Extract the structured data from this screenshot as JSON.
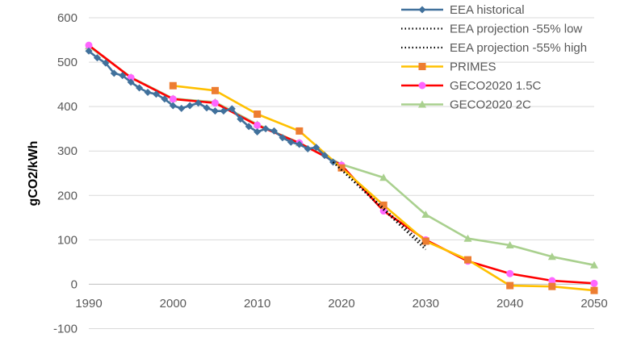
{
  "chart_data": {
    "type": "line",
    "xlabel": "",
    "ylabel": "gCO2/kWh",
    "xlim": [
      1990,
      2050
    ],
    "ylim": [
      -100,
      600
    ],
    "xticks": [
      1990,
      2000,
      2010,
      2020,
      2030,
      2040,
      2050
    ],
    "yticks": [
      -100,
      0,
      100,
      200,
      300,
      400,
      500,
      600
    ],
    "grid": "horizontal",
    "legend_position": "top-right",
    "series": [
      {
        "name": "EEA historical",
        "color": "#41719c",
        "line": "solid",
        "marker": "diamond",
        "x": [
          1990,
          1991,
          1992,
          1993,
          1994,
          1995,
          1996,
          1997,
          1998,
          1999,
          2000,
          2001,
          2002,
          2003,
          2004,
          2005,
          2006,
          2007,
          2008,
          2009,
          2010,
          2011,
          2012,
          2013,
          2014,
          2015,
          2016,
          2017,
          2018,
          2019
        ],
        "y": [
          525,
          510,
          498,
          475,
          470,
          455,
          442,
          432,
          428,
          417,
          402,
          396,
          402,
          408,
          397,
          390,
          390,
          395,
          372,
          355,
          343,
          350,
          345,
          330,
          320,
          315,
          305,
          308,
          290,
          275
        ]
      },
      {
        "name": "EEA projection -55% low",
        "color": "#000000",
        "line": "dotted",
        "marker": "none",
        "x": [
          2019,
          2030
        ],
        "y": [
          275,
          78
        ]
      },
      {
        "name": "EEA projection -55% high",
        "color": "#000000",
        "line": "dotted",
        "marker": "none",
        "x": [
          2019,
          2030
        ],
        "y": [
          275,
          85
        ]
      },
      {
        "name": "PRIMES",
        "color": "#ffc000",
        "line": "solid",
        "marker": "square",
        "marker_color": "#ed7d31",
        "x": [
          2000,
          2005,
          2010,
          2015,
          2020,
          2025,
          2030,
          2035,
          2040,
          2045,
          2050
        ],
        "y": [
          447,
          436,
          383,
          345,
          262,
          178,
          97,
          55,
          -3,
          -5,
          -14
        ]
      },
      {
        "name": "GECO2020 1.5C",
        "color": "#ff0000",
        "line": "solid",
        "marker": "circle",
        "marker_color": "#ff66ff",
        "x": [
          1990,
          1995,
          2000,
          2005,
          2010,
          2015,
          2020,
          2025,
          2030,
          2035,
          2040,
          2045,
          2050
        ],
        "y": [
          538,
          465,
          417,
          408,
          358,
          318,
          268,
          165,
          100,
          52,
          24,
          8,
          2
        ]
      },
      {
        "name": "GECO2020 2C",
        "color": "#a9d08e",
        "line": "solid",
        "marker": "triangle",
        "x": [
          1990,
          1995,
          2000,
          2005,
          2010,
          2015,
          2020,
          2025,
          2030,
          2035,
          2040,
          2045,
          2050
        ],
        "y": [
          536,
          466,
          418,
          410,
          360,
          318,
          270,
          240,
          157,
          103,
          88,
          62,
          43
        ]
      }
    ]
  }
}
